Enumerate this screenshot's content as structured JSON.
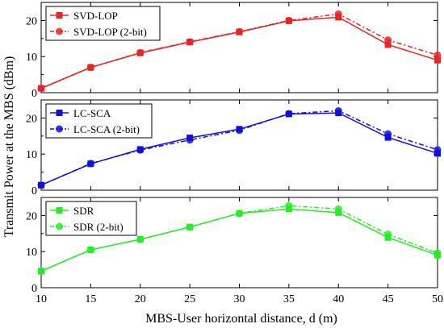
{
  "chart_data": {
    "type": "line",
    "xlabel": "MBS-User horizontal distance, d (m)",
    "ylabel": "Transmit Power at the MBS (dBm)",
    "x": [
      10,
      15,
      20,
      25,
      30,
      35,
      40,
      45,
      50
    ],
    "xlim": [
      10,
      50
    ],
    "xticks": [
      10,
      15,
      20,
      25,
      30,
      35,
      40,
      45,
      50
    ],
    "legend_position": "top-left",
    "panels": [
      {
        "ylim": [
          0,
          25
        ],
        "yticks": [
          0,
          10,
          20
        ],
        "color": "#ee2222",
        "series": [
          {
            "name": "SVD-LOP",
            "style": "solid",
            "marker": "square",
            "values": [
              1.2,
              7.0,
              11.0,
              14.0,
              16.8,
              19.9,
              20.9,
              13.3,
              9.0
            ]
          },
          {
            "name": "SVD-LOP (2-bit)",
            "style": "dashdot",
            "marker": "circle",
            "values": [
              1.2,
              7.0,
              11.1,
              14.1,
              16.9,
              20.0,
              21.8,
              14.6,
              10.4
            ]
          }
        ]
      },
      {
        "ylim": [
          0,
          25
        ],
        "yticks": [
          0,
          10,
          20
        ],
        "color": "#1010dd",
        "series": [
          {
            "name": "LC-SCA",
            "style": "solid",
            "marker": "square",
            "values": [
              1.4,
              7.3,
              11.3,
              14.5,
              16.9,
              21.1,
              21.4,
              14.6,
              10.2
            ]
          },
          {
            "name": "LC-SCA (2-bit)",
            "style": "dashdot",
            "marker": "circle",
            "values": [
              1.4,
              7.4,
              11.1,
              13.9,
              16.6,
              21.2,
              22.0,
              15.6,
              11.2
            ]
          }
        ]
      },
      {
        "ylim": [
          0,
          25
        ],
        "yticks": [
          0,
          10,
          20
        ],
        "color": "#22ee22",
        "series": [
          {
            "name": "SDR",
            "style": "solid",
            "marker": "square",
            "values": [
              4.6,
              10.5,
              13.4,
              16.8,
              20.6,
              21.8,
              20.8,
              13.9,
              9.0
            ]
          },
          {
            "name": "SDR (2-bit)",
            "style": "dashdot",
            "marker": "circle",
            "values": [
              4.6,
              10.5,
              13.4,
              16.8,
              20.6,
              22.7,
              21.8,
              14.8,
              9.6
            ]
          }
        ]
      }
    ]
  }
}
